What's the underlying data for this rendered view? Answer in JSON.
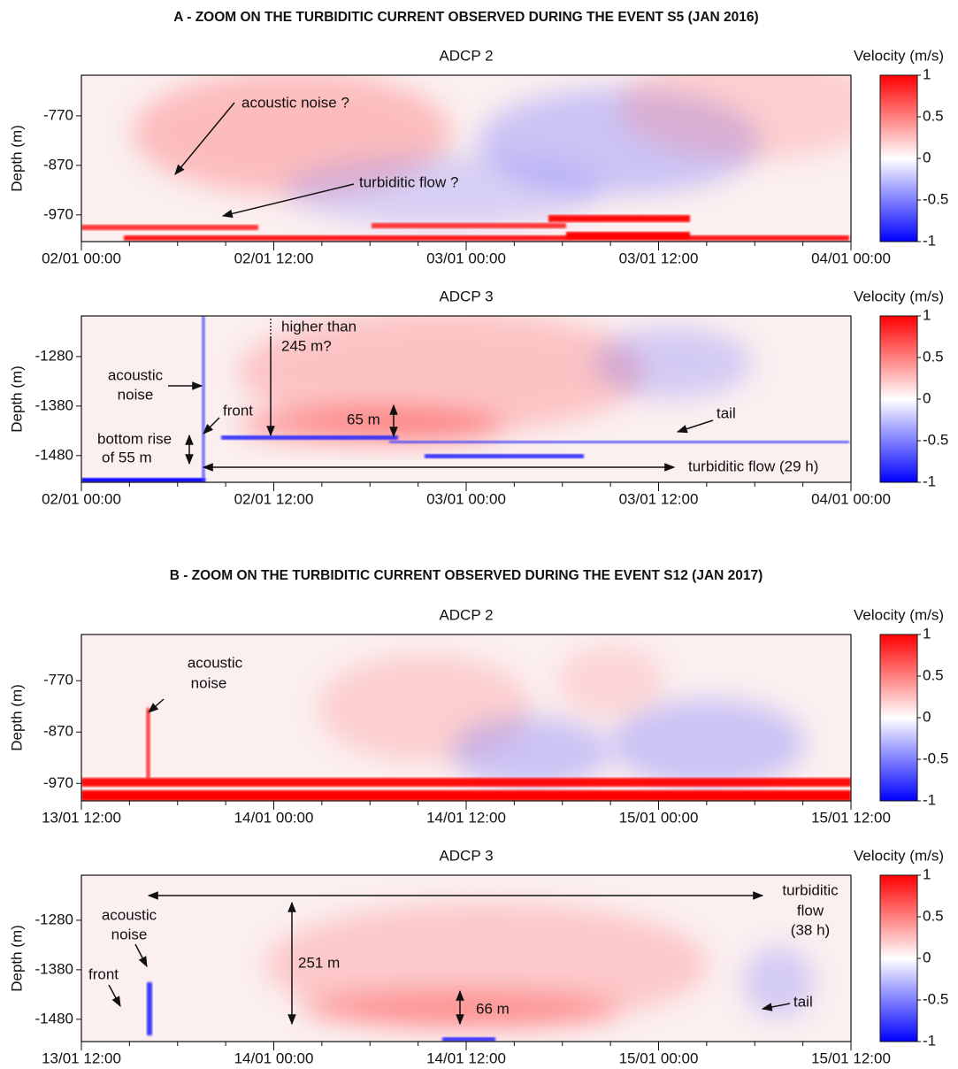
{
  "section_titles": [
    "A - ZOOM ON THE TURBIDITIC CURRENT OBSERVED DURING THE EVENT S5 (JAN 2016)",
    "B - ZOOM ON THE TURBIDITIC CURRENT OBSERVED DURING THE EVENT S12 (JAN 2017)"
  ],
  "chart_data": [
    {
      "type": "heatmap",
      "title": "ADCP 2",
      "ylabel": "Depth (m)",
      "ylim": [
        -1024,
        -688
      ],
      "yticks": [
        -770,
        -870,
        -970
      ],
      "xlim": [
        0,
        48
      ],
      "xticks": [
        {
          "value": 0,
          "label": "02/01 00:00"
        },
        {
          "value": 12,
          "label": "02/01 12:00"
        },
        {
          "value": 24,
          "label": "03/01 00:00"
        },
        {
          "value": 36,
          "label": "03/01 12:00"
        },
        {
          "value": 48,
          "label": "04/01 00:00"
        }
      ],
      "colorbar": {
        "label": "Velocity (m/s)",
        "lim": [
          -1,
          1
        ],
        "ticks": [
          1,
          0.5,
          0,
          -0.5,
          -1
        ]
      },
      "annotations": [
        {
          "text": [
            "acoustic noise ?"
          ]
        },
        {
          "text": [
            "turbiditic flow ?"
          ]
        }
      ]
    },
    {
      "type": "heatmap",
      "title": "ADCP 3",
      "ylabel": "Depth (m)",
      "ylim": [
        -1534,
        -1198
      ],
      "yticks": [
        -1280,
        -1380,
        -1480
      ],
      "xlim": [
        0,
        48
      ],
      "xticks": [
        {
          "value": 0,
          "label": "02/01 00:00"
        },
        {
          "value": 12,
          "label": "02/01 12:00"
        },
        {
          "value": 24,
          "label": "03/01 00:00"
        },
        {
          "value": 36,
          "label": "03/01 12:00"
        },
        {
          "value": 48,
          "label": "04/01 00:00"
        }
      ],
      "colorbar": {
        "label": "Velocity (m/s)",
        "lim": [
          -1,
          1
        ],
        "ticks": [
          1,
          0.5,
          0,
          -0.5,
          -1
        ]
      },
      "annotations": [
        {
          "text": [
            "higher than",
            "245 m?"
          ]
        },
        {
          "text": [
            "acoustic",
            "noise"
          ]
        },
        {
          "text": [
            "front"
          ]
        },
        {
          "text": [
            "65 m"
          ]
        },
        {
          "text": [
            "bottom rise",
            "of 55 m"
          ]
        },
        {
          "text": [
            "tail"
          ]
        },
        {
          "text": [
            "turbiditic flow (29 h)"
          ]
        }
      ]
    },
    {
      "type": "heatmap",
      "title": "ADCP 2",
      "ylabel": "Depth (m)",
      "ylim": [
        -1004,
        -680
      ],
      "yticks": [
        -770,
        -870,
        -970
      ],
      "xlim": [
        0,
        48
      ],
      "xticks": [
        {
          "value": 0,
          "label": "13/01 12:00"
        },
        {
          "value": 12,
          "label": "14/01 00:00"
        },
        {
          "value": 24,
          "label": "14/01 12:00"
        },
        {
          "value": 36,
          "label": "15/01 00:00"
        },
        {
          "value": 48,
          "label": "15/01 12:00"
        }
      ],
      "colorbar": {
        "label": "Velocity (m/s)",
        "lim": [
          -1,
          1
        ],
        "ticks": [
          1,
          0.5,
          0,
          -0.5,
          -1
        ]
      },
      "annotations": [
        {
          "text": [
            "acoustic",
            "noise"
          ]
        }
      ]
    },
    {
      "type": "heatmap",
      "title": "ADCP 3",
      "ylabel": "Depth (m)",
      "ylim": [
        -1525,
        -1189
      ],
      "yticks": [
        -1280,
        -1380,
        -1480
      ],
      "xlim": [
        0,
        48
      ],
      "xticks": [
        {
          "value": 0,
          "label": "13/01 12:00"
        },
        {
          "value": 12,
          "label": "14/01 00:00"
        },
        {
          "value": 24,
          "label": "14/01 12:00"
        },
        {
          "value": 36,
          "label": "15/01 00:00"
        },
        {
          "value": 48,
          "label": "15/01 12:00"
        }
      ],
      "colorbar": {
        "label": "Velocity (m/s)",
        "lim": [
          -1,
          1
        ],
        "ticks": [
          1,
          0.5,
          0,
          -0.5,
          -1
        ]
      },
      "annotations": [
        {
          "text": [
            "turbiditic",
            "flow",
            "(38 h)"
          ]
        },
        {
          "text": [
            "acoustic",
            "noise"
          ]
        },
        {
          "text": [
            "front"
          ]
        },
        {
          "text": [
            "251 m"
          ]
        },
        {
          "text": [
            "66 m"
          ]
        },
        {
          "text": [
            "tail"
          ]
        }
      ]
    }
  ]
}
